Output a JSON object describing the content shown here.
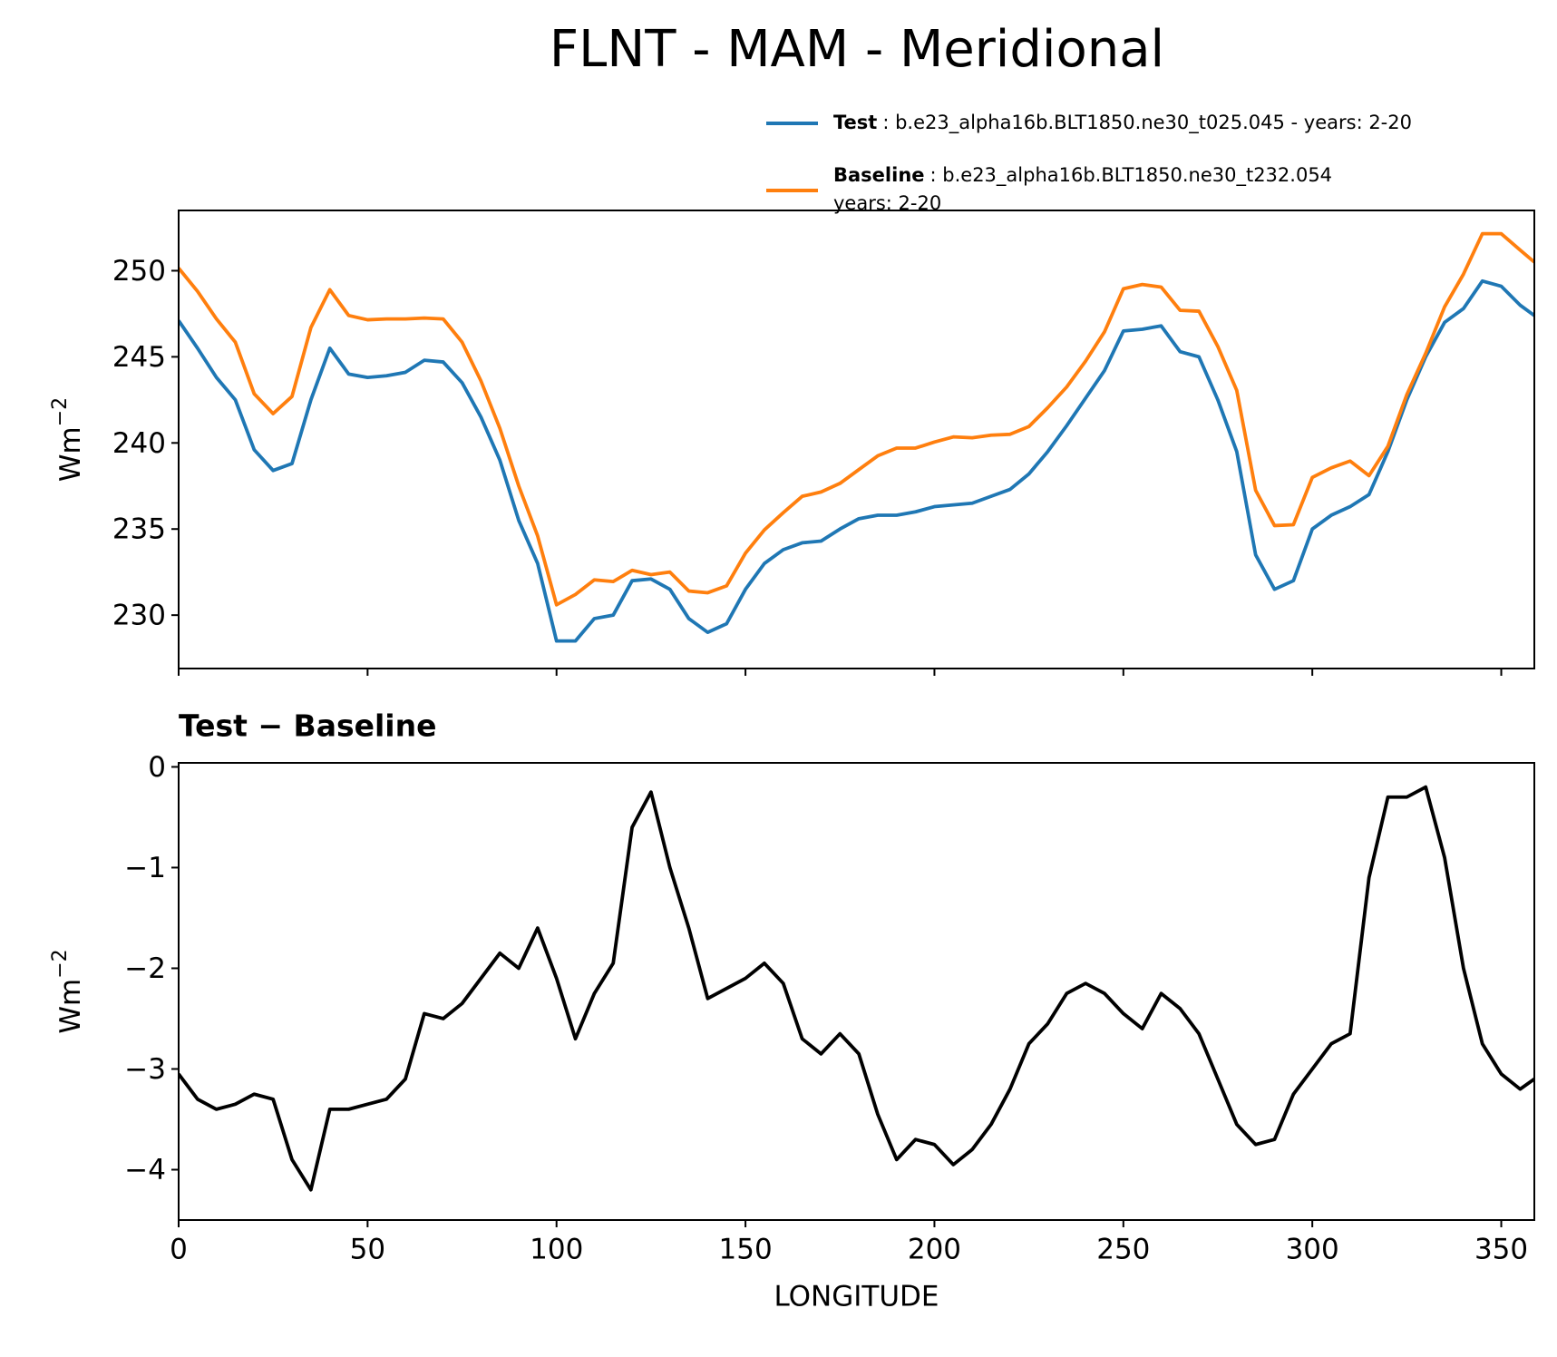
{
  "title": "FLNT - MAM - Meridional",
  "chart_data": [
    {
      "type": "line",
      "ylabel": {
        "base": "Wm",
        "sup": "−2"
      },
      "xlim": [
        0,
        358.75
      ],
      "ylim": [
        226.9,
        253.5
      ],
      "xticks": [
        0,
        50,
        100,
        150,
        200,
        250,
        300,
        350
      ],
      "yticks": [
        230,
        235,
        240,
        245,
        250
      ],
      "grid": false,
      "x": [
        0,
        5,
        10,
        15,
        20,
        25,
        30,
        35,
        40,
        45,
        50,
        55,
        60,
        65,
        70,
        75,
        80,
        85,
        90,
        95,
        100,
        105,
        110,
        115,
        120,
        125,
        130,
        135,
        140,
        145,
        150,
        155,
        160,
        165,
        170,
        175,
        180,
        185,
        190,
        195,
        200,
        205,
        210,
        215,
        220,
        225,
        230,
        235,
        240,
        245,
        250,
        255,
        260,
        265,
        270,
        275,
        280,
        285,
        290,
        295,
        300,
        305,
        310,
        315,
        320,
        325,
        330,
        335,
        340,
        345,
        350,
        355,
        358.75
      ],
      "series": [
        {
          "name": "Test",
          "description": [
            ": b.e23_alpha16b.BLT1850.ne30_t025.045 - years: 2-20"
          ],
          "color": "#1f77b4",
          "values": [
            247.1,
            245.5,
            243.8,
            242.5,
            239.6,
            238.4,
            238.8,
            242.5,
            245.5,
            244,
            243.8,
            243.9,
            244.1,
            244.8,
            244.7,
            243.5,
            241.5,
            239,
            235.5,
            233,
            228.5,
            228.5,
            229.8,
            230,
            232,
            232.1,
            231.5,
            229.8,
            229,
            229.5,
            231.5,
            233,
            233.8,
            234.2,
            234.3,
            235,
            235.6,
            235.8,
            235.8,
            236,
            236.3,
            236.4,
            236.5,
            236.9,
            237.3,
            238.2,
            239.5,
            241,
            242.6,
            244.2,
            246.5,
            246.6,
            246.8,
            245.3,
            245,
            242.5,
            239.5,
            233.5,
            231.5,
            232,
            235,
            235.8,
            236.3,
            237,
            239.5,
            242.5,
            245,
            247,
            247.8,
            249.4,
            249.1,
            248,
            247.4
          ]
        },
        {
          "name": "Baseline",
          "description": [
            ": b.e23_alpha16b.BLT1850.ne30_t232.054",
            "years: 2-20"
          ],
          "color": "#ff7f0e",
          "values": [
            250.15,
            248.8,
            247.2,
            245.85,
            242.85,
            241.7,
            242.7,
            246.7,
            248.9,
            247.4,
            247.15,
            247.2,
            247.2,
            247.25,
            247.2,
            245.85,
            243.6,
            240.85,
            237.5,
            234.6,
            230.6,
            231.2,
            232.05,
            231.95,
            232.6,
            232.35,
            232.5,
            231.4,
            231.3,
            231.7,
            233.6,
            234.95,
            235.95,
            236.9,
            237.15,
            237.65,
            238.45,
            239.25,
            239.7,
            239.7,
            240.05,
            240.35,
            240.3,
            240.45,
            240.5,
            240.95,
            242.05,
            243.25,
            244.75,
            246.45,
            248.95,
            249.2,
            249.05,
            247.7,
            247.65,
            245.6,
            243.05,
            237.25,
            235.2,
            235.25,
            238,
            238.55,
            238.95,
            238.1,
            239.8,
            242.8,
            245.2,
            247.9,
            249.8,
            252.15,
            252.15,
            251.2,
            250.5
          ]
        }
      ]
    },
    {
      "type": "line",
      "title": "Test − Baseline",
      "xlabel": "LONGITUDE",
      "ylabel": {
        "base": "Wm",
        "sup": "−2"
      },
      "xlim": [
        0,
        358.75
      ],
      "ylim": [
        -4.5,
        0.04
      ],
      "xticks": [
        0,
        50,
        100,
        150,
        200,
        250,
        300,
        350
      ],
      "yticks": [
        0,
        {
          "value": -1,
          "label": "−1"
        },
        {
          "value": -2,
          "label": "−2"
        },
        {
          "value": -3,
          "label": "−3"
        },
        {
          "value": -4,
          "label": "−4"
        }
      ],
      "grid": false,
      "x": [
        0,
        5,
        10,
        15,
        20,
        25,
        30,
        35,
        40,
        45,
        50,
        55,
        60,
        65,
        70,
        75,
        80,
        85,
        90,
        95,
        100,
        105,
        110,
        115,
        120,
        125,
        130,
        135,
        140,
        145,
        150,
        155,
        160,
        165,
        170,
        175,
        180,
        185,
        190,
        195,
        200,
        205,
        210,
        215,
        220,
        225,
        230,
        235,
        240,
        245,
        250,
        255,
        260,
        265,
        270,
        275,
        280,
        285,
        290,
        295,
        300,
        305,
        310,
        315,
        320,
        325,
        330,
        335,
        340,
        345,
        350,
        355,
        358.75
      ],
      "series": [
        {
          "color": "#000000",
          "values": [
            -3.05,
            -3.3,
            -3.4,
            -3.35,
            -3.25,
            -3.3,
            -3.9,
            -4.2,
            -3.4,
            -3.4,
            -3.35,
            -3.3,
            -3.1,
            -2.45,
            -2.5,
            -2.35,
            -2.1,
            -1.85,
            -2.0,
            -1.6,
            -2.1,
            -2.7,
            -2.25,
            -1.95,
            -0.6,
            -0.25,
            -1.0,
            -1.6,
            -2.3,
            -2.2,
            -2.1,
            -1.95,
            -2.15,
            -2.7,
            -2.85,
            -2.65,
            -2.85,
            -3.45,
            -3.9,
            -3.7,
            -3.75,
            -3.95,
            -3.8,
            -3.55,
            -3.2,
            -2.75,
            -2.55,
            -2.25,
            -2.15,
            -2.25,
            -2.45,
            -2.6,
            -2.25,
            -2.4,
            -2.65,
            -3.1,
            -3.55,
            -3.75,
            -3.7,
            -3.25,
            -3.0,
            -2.75,
            -2.65,
            -1.1,
            -0.3,
            -0.3,
            -0.2,
            -0.9,
            -2.0,
            -2.75,
            -3.05,
            -3.2,
            -3.1
          ]
        }
      ]
    }
  ]
}
